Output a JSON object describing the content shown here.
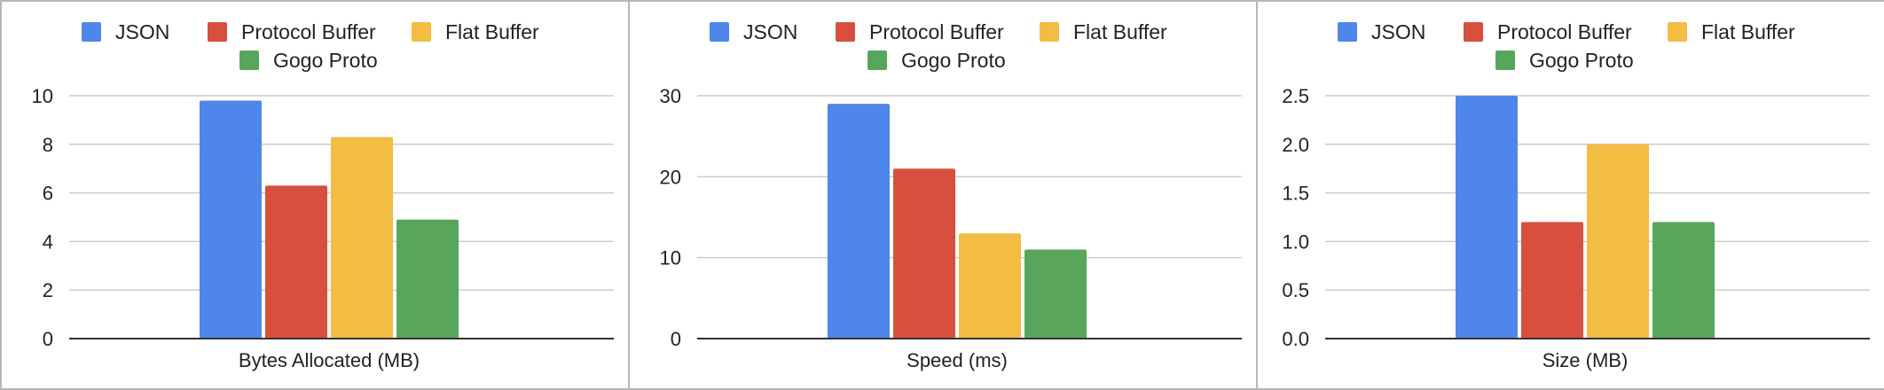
{
  "chart_data": [
    {
      "type": "bar",
      "categories": [
        "Bytes Allocated (MB)"
      ],
      "series": [
        {
          "name": "JSON",
          "values": [
            9.8
          ]
        },
        {
          "name": "Protocol Buffer",
          "values": [
            6.3
          ]
        },
        {
          "name": "Flat Buffer",
          "values": [
            8.3
          ]
        },
        {
          "name": "Gogo Proto",
          "values": [
            4.9
          ]
        }
      ],
      "ylim": [
        0,
        10
      ],
      "yticks": [
        "0",
        "2",
        "4",
        "6",
        "8",
        "10"
      ],
      "grid": true,
      "legend": "top"
    },
    {
      "type": "bar",
      "categories": [
        "Speed (ms)"
      ],
      "series": [
        {
          "name": "JSON",
          "values": [
            29
          ]
        },
        {
          "name": "Protocol Buffer",
          "values": [
            21
          ]
        },
        {
          "name": "Flat Buffer",
          "values": [
            13
          ]
        },
        {
          "name": "Gogo Proto",
          "values": [
            11
          ]
        }
      ],
      "ylim": [
        0,
        30
      ],
      "yticks": [
        "0",
        "10",
        "20",
        "30"
      ],
      "grid": true,
      "legend": "top"
    },
    {
      "type": "bar",
      "categories": [
        "Size (MB)"
      ],
      "series": [
        {
          "name": "JSON",
          "values": [
            2.5
          ]
        },
        {
          "name": "Protocol Buffer",
          "values": [
            1.2
          ]
        },
        {
          "name": "Flat Buffer",
          "values": [
            2.0
          ]
        },
        {
          "name": "Gogo Proto",
          "values": [
            1.2
          ]
        }
      ],
      "ylim": [
        0,
        2.5
      ],
      "yticks": [
        "0.0",
        "0.5",
        "1.0",
        "1.5",
        "2.0",
        "2.5"
      ],
      "grid": true,
      "legend": "top"
    }
  ],
  "colors": {
    "JSON": "#4f86ec",
    "Protocol Buffer": "#d94f3e",
    "Flat Buffer": "#f2bd42",
    "Gogo Proto": "#58a65c",
    "gridline": "#cccccc",
    "axis": "#333333",
    "frame": "#b7b7b7"
  }
}
